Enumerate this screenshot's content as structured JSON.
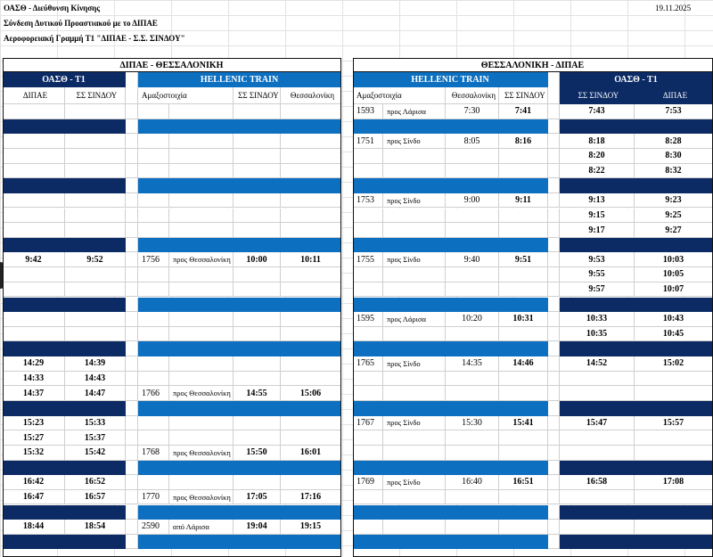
{
  "header": {
    "org": "ΟΑΣΘ - Διεύθυνση Κίνησης",
    "date": "19.11.2025",
    "subtitle": "Σύνδεση Δυτικού Προαστιακού με το ΔΙΠΑΕ",
    "line": "Αεροφορειακή Γραμμή Τ1  \"ΔΙΠΑΕ - Σ.Σ. ΣΙΝΔΟΥ\""
  },
  "left": {
    "title": "ΔΙΠΑΕ - ΘΕΣΣΑΛΟΝΙΚΗ",
    "bus_title": "ΟΑΣΘ - Τ1",
    "train_title": "HELLENIC TRAIN",
    "columns": [
      "ΔΙΠΑΕ",
      "ΣΣ ΣΙΝΔΟΥ",
      "Αμαξοστοιχία",
      "ΣΣ ΣΙΝΔΟΥ",
      "Θεσσαλονίκη"
    ]
  },
  "right": {
    "title": "ΘΕΣΣΑΛΟΝΙΚΗ - ΔΙΠΑΕ",
    "bus_title": "ΟΑΣΘ - Τ1",
    "train_title": "HELLENIC TRAIN",
    "columns": [
      "Αμαξοστοιχία",
      "Θεσσαλονίκη",
      "ΣΣ ΣΙΝΔΟΥ",
      "ΣΣ ΣΙΝΔΟΥ",
      "ΔΙΠΑΕ"
    ]
  },
  "blocks": [
    {
      "rows": [
        {
          "left": null,
          "right": [
            "1593",
            "προς Λάρισα",
            "7:30",
            "7:41",
            "7:43",
            "7:53"
          ]
        }
      ]
    },
    {
      "rows": [
        {
          "left": null,
          "right": [
            "1751",
            "προς Σίνδο",
            "8:05",
            "8:16",
            "8:18",
            "8:28"
          ]
        },
        {
          "left": null,
          "right": [
            null,
            null,
            null,
            null,
            "8:20",
            "8:30"
          ]
        },
        {
          "left": null,
          "right": [
            null,
            null,
            null,
            null,
            "8:22",
            "8:32"
          ]
        }
      ]
    },
    {
      "rows": [
        {
          "left": null,
          "right": [
            "1753",
            "προς Σίνδο",
            "9:00",
            "9:11",
            "9:13",
            "9:23"
          ]
        },
        {
          "left": null,
          "right": [
            null,
            null,
            null,
            null,
            "9:15",
            "9:25"
          ]
        },
        {
          "left": null,
          "right": [
            null,
            null,
            null,
            null,
            "9:17",
            "9:27"
          ]
        }
      ]
    },
    {
      "rows": [
        {
          "left": [
            "9:42",
            "9:52",
            "1756",
            "προς Θεσσαλονίκη",
            "10:00",
            "10:11"
          ],
          "right": [
            "1755",
            "προς Σίνδο",
            "9:40",
            "9:51",
            "9:53",
            "10:03"
          ]
        },
        {
          "left": null,
          "right": [
            null,
            null,
            null,
            null,
            "9:55",
            "10:05"
          ]
        },
        {
          "left": null,
          "right": [
            null,
            null,
            null,
            null,
            "9:57",
            "10:07"
          ]
        }
      ]
    },
    {
      "rows": [
        {
          "left": null,
          "right": [
            "1595",
            "προς Λάρισα",
            "10:20",
            "10:31",
            "10:33",
            "10:43"
          ]
        },
        {
          "left": null,
          "right": [
            null,
            null,
            null,
            null,
            "10:35",
            "10:45"
          ]
        }
      ]
    },
    {
      "rows": [
        {
          "left": [
            "14:29",
            "14:39",
            null,
            null,
            null,
            null
          ],
          "right": [
            "1765",
            "προς Σίνδο",
            "14:35",
            "14:46",
            "14:52",
            "15:02"
          ]
        },
        {
          "left": [
            "14:33",
            "14:43",
            null,
            null,
            null,
            null
          ],
          "right": null
        },
        {
          "left": [
            "14:37",
            "14:47",
            "1766",
            "προς Θεσσαλονίκη",
            "14:55",
            "15:06"
          ],
          "right": null
        }
      ]
    },
    {
      "rows": [
        {
          "left": [
            "15:23",
            "15:33",
            null,
            null,
            null,
            null
          ],
          "right": [
            "1767",
            "προς Σίνδο",
            "15:30",
            "15:41",
            "15:47",
            "15:57"
          ]
        },
        {
          "left": [
            "15:27",
            "15:37",
            null,
            null,
            null,
            null
          ],
          "right": null
        },
        {
          "left": [
            "15:32",
            "15:42",
            "1768",
            "προς Θεσσαλονίκη",
            "15:50",
            "16:01"
          ],
          "right": null
        }
      ]
    },
    {
      "rows": [
        {
          "left": [
            "16:42",
            "16:52",
            null,
            null,
            null,
            null
          ],
          "right": [
            "1769",
            "προς Σίνδο",
            "16:40",
            "16:51",
            "16:58",
            "17:08"
          ]
        },
        {
          "left": [
            "16:47",
            "16:57",
            "1770",
            "προς Θεσσαλονίκη",
            "17:05",
            "17:16"
          ],
          "right": null
        }
      ]
    },
    {
      "rows": [
        {
          "left": [
            "18:44",
            "18:54",
            "2590",
            "από Λάρισα",
            "19:04",
            "19:15"
          ],
          "right": null
        }
      ]
    }
  ]
}
